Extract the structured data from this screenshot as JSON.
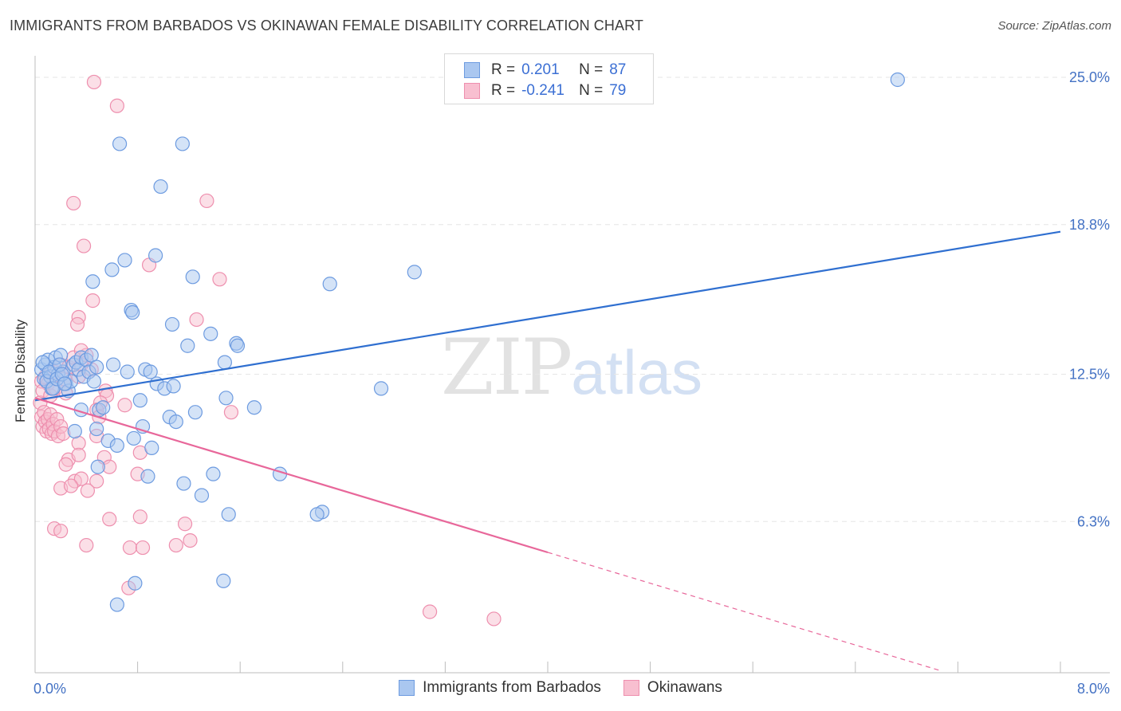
{
  "title": "IMMIGRANTS FROM BARBADOS VS OKINAWAN FEMALE DISABILITY CORRELATION CHART",
  "source": "Source: ZipAtlas.com",
  "watermark": {
    "zip": "ZIP",
    "atlas": "atlas"
  },
  "legend": {
    "series1": {
      "r_label": "R =",
      "r_value": "0.201",
      "n_label": "N =",
      "n_value": "87"
    },
    "series2": {
      "r_label": "R =",
      "r_value": "-0.241",
      "n_label": "N =",
      "n_value": "79"
    }
  },
  "bottom_legend": {
    "series1": "Immigrants from Barbados",
    "series2": "Okinawans"
  },
  "colors": {
    "blue_fill": "#aac7f0",
    "blue_stroke": "#6d9be0",
    "blue_line": "#2f6fd0",
    "pink_fill": "#f8bfd0",
    "pink_stroke": "#ee8fae",
    "pink_line": "#e8679a",
    "grid": "#e6e6e6",
    "tick_text": "#4472c4"
  },
  "chart_data": {
    "type": "scatter",
    "title": "IMMIGRANTS FROM BARBADOS VS OKINAWAN FEMALE DISABILITY CORRELATION CHART",
    "xlabel": "",
    "ylabel": "Female Disability",
    "xlim": [
      0,
      8.0
    ],
    "ylim": [
      0,
      26.5
    ],
    "y_ticks": [
      6.3,
      12.5,
      18.8,
      25.0
    ],
    "y_tick_labels": [
      "6.3%",
      "12.5%",
      "18.8%",
      "25.0%"
    ],
    "x_tick_labels": [
      "0.0%",
      "8.0%"
    ],
    "series": [
      {
        "name": "Immigrants from Barbados",
        "R": 0.201,
        "N": 87,
        "trend": {
          "x": [
            0.0,
            8.0
          ],
          "y": [
            11.4,
            18.5
          ]
        },
        "points": [
          [
            0.05,
            12.7
          ],
          [
            0.07,
            12.3
          ],
          [
            0.08,
            12.9
          ],
          [
            0.1,
            13.1
          ],
          [
            0.12,
            12.4
          ],
          [
            0.13,
            11.9
          ],
          [
            0.15,
            12.8
          ],
          [
            0.16,
            13.2
          ],
          [
            0.18,
            12.5
          ],
          [
            0.2,
            13.3
          ],
          [
            0.22,
            12.6
          ],
          [
            0.24,
            12.1
          ],
          [
            0.26,
            11.8
          ],
          [
            0.28,
            12.2
          ],
          [
            0.3,
            12.9
          ],
          [
            0.32,
            13.0
          ],
          [
            0.34,
            12.7
          ],
          [
            0.36,
            13.2
          ],
          [
            0.38,
            12.4
          ],
          [
            0.4,
            13.1
          ],
          [
            0.42,
            12.6
          ],
          [
            0.44,
            13.3
          ],
          [
            0.46,
            12.2
          ],
          [
            0.48,
            12.8
          ],
          [
            0.06,
            13.0
          ],
          [
            0.09,
            12.2
          ],
          [
            0.11,
            12.6
          ],
          [
            0.14,
            11.9
          ],
          [
            0.17,
            12.3
          ],
          [
            0.19,
            12.9
          ],
          [
            0.21,
            12.5
          ],
          [
            0.23,
            12.1
          ],
          [
            0.66,
            22.2
          ],
          [
            1.15,
            22.2
          ],
          [
            0.98,
            20.4
          ],
          [
            0.7,
            17.3
          ],
          [
            0.94,
            17.5
          ],
          [
            0.6,
            16.9
          ],
          [
            0.45,
            16.4
          ],
          [
            1.23,
            16.6
          ],
          [
            2.3,
            16.3
          ],
          [
            2.96,
            16.8
          ],
          [
            0.75,
            15.2
          ],
          [
            0.76,
            15.1
          ],
          [
            1.07,
            14.6
          ],
          [
            1.37,
            14.2
          ],
          [
            1.19,
            13.7
          ],
          [
            1.57,
            13.8
          ],
          [
            1.58,
            13.7
          ],
          [
            1.48,
            13.0
          ],
          [
            0.61,
            12.9
          ],
          [
            0.72,
            12.6
          ],
          [
            0.86,
            12.7
          ],
          [
            0.9,
            12.6
          ],
          [
            0.95,
            12.1
          ],
          [
            1.01,
            11.9
          ],
          [
            1.08,
            12.0
          ],
          [
            0.82,
            11.4
          ],
          [
            1.49,
            11.5
          ],
          [
            1.71,
            11.1
          ],
          [
            2.7,
            11.9
          ],
          [
            0.36,
            11.0
          ],
          [
            0.5,
            11.0
          ],
          [
            0.53,
            11.1
          ],
          [
            1.05,
            10.7
          ],
          [
            1.1,
            10.5
          ],
          [
            1.25,
            10.9
          ],
          [
            0.48,
            10.2
          ],
          [
            0.84,
            10.3
          ],
          [
            0.31,
            10.1
          ],
          [
            0.57,
            9.7
          ],
          [
            0.77,
            9.8
          ],
          [
            0.64,
            9.5
          ],
          [
            0.91,
            9.4
          ],
          [
            0.49,
            8.6
          ],
          [
            0.88,
            8.2
          ],
          [
            1.39,
            8.3
          ],
          [
            1.91,
            8.3
          ],
          [
            1.16,
            7.9
          ],
          [
            1.3,
            7.4
          ],
          [
            2.24,
            6.7
          ],
          [
            2.2,
            6.6
          ],
          [
            1.51,
            6.6
          ],
          [
            0.78,
            3.7
          ],
          [
            1.47,
            3.8
          ],
          [
            0.64,
            2.8
          ],
          [
            6.73,
            24.9
          ]
        ]
      },
      {
        "name": "Okinawans",
        "R": -0.241,
        "N": 79,
        "trend": {
          "x": [
            0.0,
            4.0
          ],
          "y": [
            11.5,
            5.0
          ]
        },
        "trend_dashed": {
          "x": [
            4.0,
            8.0
          ],
          "y": [
            5.0,
            -1.5
          ]
        },
        "points": [
          [
            0.04,
            11.3
          ],
          [
            0.05,
            10.7
          ],
          [
            0.06,
            10.3
          ],
          [
            0.07,
            10.9
          ],
          [
            0.08,
            10.5
          ],
          [
            0.09,
            10.1
          ],
          [
            0.1,
            10.6
          ],
          [
            0.11,
            10.2
          ],
          [
            0.12,
            10.8
          ],
          [
            0.13,
            10.0
          ],
          [
            0.14,
            10.4
          ],
          [
            0.15,
            10.1
          ],
          [
            0.17,
            10.6
          ],
          [
            0.18,
            9.9
          ],
          [
            0.2,
            10.3
          ],
          [
            0.22,
            10.0
          ],
          [
            0.05,
            12.2
          ],
          [
            0.08,
            12.4
          ],
          [
            0.1,
            12.1
          ],
          [
            0.15,
            12.6
          ],
          [
            0.2,
            12.9
          ],
          [
            0.23,
            12.3
          ],
          [
            0.26,
            12.8
          ],
          [
            0.3,
            13.2
          ],
          [
            0.34,
            12.4
          ],
          [
            0.36,
            12.9
          ],
          [
            0.4,
            13.3
          ],
          [
            0.44,
            12.7
          ],
          [
            0.06,
            11.8
          ],
          [
            0.12,
            11.6
          ],
          [
            0.16,
            11.9
          ],
          [
            0.24,
            11.7
          ],
          [
            0.46,
            24.8
          ],
          [
            0.64,
            23.8
          ],
          [
            0.3,
            19.7
          ],
          [
            1.34,
            19.8
          ],
          [
            0.38,
            17.9
          ],
          [
            0.89,
            17.1
          ],
          [
            1.44,
            16.5
          ],
          [
            0.45,
            15.6
          ],
          [
            0.34,
            14.9
          ],
          [
            0.33,
            14.6
          ],
          [
            1.26,
            14.8
          ],
          [
            0.36,
            13.5
          ],
          [
            0.55,
            11.8
          ],
          [
            0.56,
            11.6
          ],
          [
            0.51,
            11.3
          ],
          [
            0.48,
            11.0
          ],
          [
            0.5,
            10.7
          ],
          [
            1.53,
            10.9
          ],
          [
            0.34,
            9.6
          ],
          [
            0.48,
            9.9
          ],
          [
            0.54,
            9.0
          ],
          [
            0.26,
            8.9
          ],
          [
            0.34,
            9.1
          ],
          [
            0.82,
            9.2
          ],
          [
            0.58,
            8.6
          ],
          [
            0.24,
            8.7
          ],
          [
            0.8,
            8.3
          ],
          [
            0.31,
            8.0
          ],
          [
            0.36,
            8.1
          ],
          [
            0.48,
            8.0
          ],
          [
            0.2,
            7.7
          ],
          [
            0.41,
            7.6
          ],
          [
            0.28,
            7.8
          ],
          [
            0.58,
            6.4
          ],
          [
            0.82,
            6.5
          ],
          [
            1.17,
            6.2
          ],
          [
            0.15,
            6.0
          ],
          [
            0.2,
            5.9
          ],
          [
            0.4,
            5.3
          ],
          [
            0.74,
            5.2
          ],
          [
            0.84,
            5.2
          ],
          [
            1.1,
            5.3
          ],
          [
            1.21,
            5.5
          ],
          [
            0.73,
            3.5
          ],
          [
            3.08,
            2.5
          ],
          [
            3.58,
            2.2
          ],
          [
            0.7,
            11.2
          ]
        ]
      }
    ]
  }
}
